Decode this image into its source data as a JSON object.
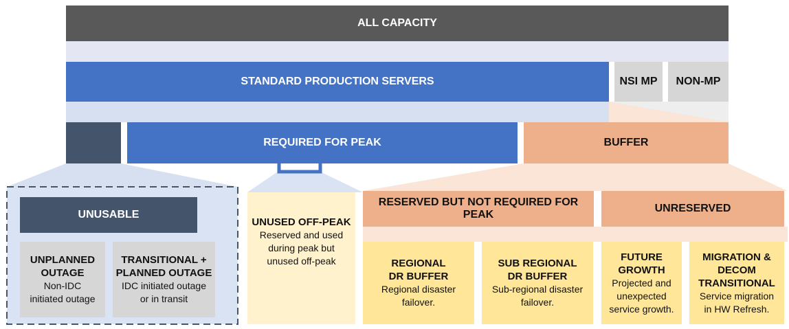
{
  "all_capacity": "ALL CAPACITY",
  "standard_production_servers": "STANDARD PRODUCTION SERVERS",
  "nsi_mp": "NSI MP",
  "non_mp": "NON-MP",
  "required_for_peak": "REQUIRED FOR PEAK",
  "buffer": "BUFFER",
  "unusable": {
    "title": "UNUSABLE",
    "unplanned": {
      "title_lines": [
        "UNPLANNED",
        "OUTAGE"
      ],
      "desc_lines": [
        "Non-IDC",
        "initiated outage"
      ]
    },
    "transitional": {
      "title_lines": [
        "TRANSITIONAL +",
        "PLANNED OUTAGE"
      ],
      "desc_lines": [
        "IDC initiated outage",
        "or in transit"
      ]
    }
  },
  "unused_off_peak": {
    "title": "UNUSED OFF-PEAK",
    "desc_lines": [
      "Reserved and used",
      "during peak but",
      "unused off-peak"
    ]
  },
  "reserved_not_required": "RESERVED BUT NOT REQUIRED FOR PEAK",
  "unreserved": "UNRESERVED",
  "regional_dr_buffer": {
    "title_lines": [
      "REGIONAL",
      "DR BUFFER"
    ],
    "desc_lines": [
      "Regional disaster",
      "failover."
    ]
  },
  "sub_regional_dr_buffer": {
    "title_lines": [
      "SUB REGIONAL",
      "DR BUFFER"
    ],
    "desc_lines": [
      "Sub-regional disaster",
      "failover."
    ]
  },
  "future_growth": {
    "title_lines": [
      "FUTURE",
      "GROWTH"
    ],
    "desc_lines": [
      "Projected and",
      "unexpected",
      "service growth."
    ]
  },
  "migration_decom": {
    "title_lines": [
      "MIGRATION &",
      "DECOM",
      "TRANSITIONAL"
    ],
    "desc_lines": [
      "Service migration",
      "in HW Refresh."
    ]
  },
  "colors": {
    "dark_gray": "#595959",
    "blue": "#4472c4",
    "navy": "#44546a",
    "gray_box": "#d6d6d6",
    "orange": "#eeb08a",
    "light_yellow": "#fff2cc",
    "yellow": "#ffe699"
  }
}
